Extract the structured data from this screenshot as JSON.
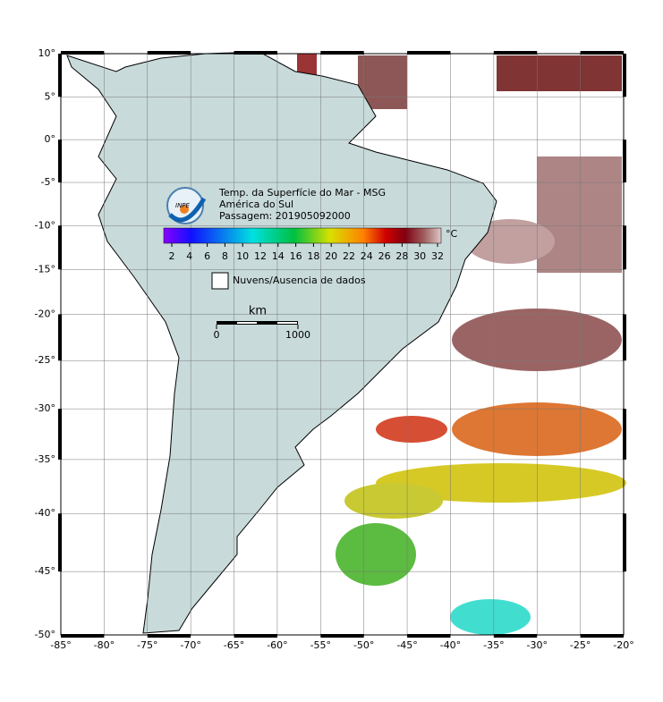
{
  "map": {
    "title": "Temp. da Superfície do Mar - MSG",
    "subtitle": "América do Sul",
    "pass": "Passagem: 201905092000",
    "logo_text": "INPE",
    "colorbar": {
      "unit": "°C",
      "ticks": [
        2,
        4,
        6,
        8,
        10,
        12,
        14,
        16,
        18,
        20,
        22,
        24,
        26,
        28,
        30,
        32
      ]
    },
    "legend": "Nuvens/Ausencia de dados",
    "scale": {
      "unit": "km",
      "ticks": [
        0,
        1000
      ]
    },
    "lon_ticks": [
      {
        "value": -85,
        "label": "-85°"
      },
      {
        "value": -80,
        "label": "-80°"
      },
      {
        "value": -75,
        "label": "-75°"
      },
      {
        "value": -70,
        "label": "-70°"
      },
      {
        "value": -65,
        "label": "-65°"
      },
      {
        "value": -60,
        "label": "-60°"
      },
      {
        "value": -55,
        "label": "-55°"
      },
      {
        "value": -50,
        "label": "-50°"
      },
      {
        "value": -45,
        "label": "-45°"
      },
      {
        "value": -40,
        "label": "-40°"
      },
      {
        "value": -35,
        "label": "-35°"
      },
      {
        "value": -30,
        "label": "-30°"
      },
      {
        "value": -25,
        "label": "-25°"
      },
      {
        "value": -20,
        "label": "-20°"
      }
    ],
    "lat_ticks": [
      {
        "value": 10,
        "label": "10°"
      },
      {
        "value": 5,
        "label": "5°"
      },
      {
        "value": 0,
        "label": "0°"
      },
      {
        "value": -5,
        "label": "-5°"
      },
      {
        "value": -10,
        "label": "-10°"
      },
      {
        "value": -15,
        "label": "-15°"
      },
      {
        "value": -20,
        "label": "-20°"
      },
      {
        "value": -25,
        "label": "-25°"
      },
      {
        "value": -30,
        "label": "-30°"
      },
      {
        "value": -35,
        "label": "-35°"
      },
      {
        "value": -40,
        "label": "-40°"
      },
      {
        "value": -45,
        "label": "-45°"
      },
      {
        "value": -50,
        "label": "-50°"
      }
    ]
  }
}
